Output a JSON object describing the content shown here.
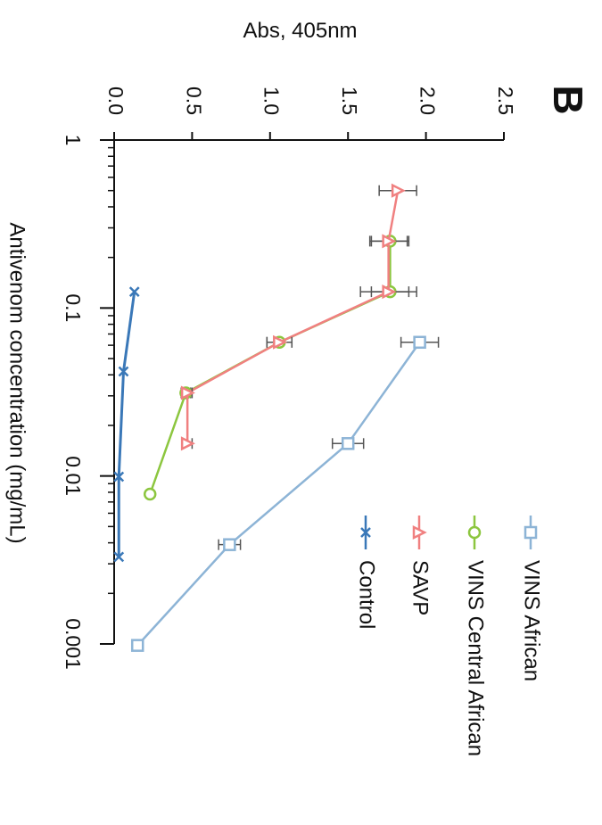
{
  "panel_label": "B",
  "chart_data": {
    "type": "line",
    "orientation": "rotated-90-clockwise",
    "x_scale": "log",
    "xlabel": "Antivenom concentration (mg/mL)",
    "ylabel": "Abs, 405nm",
    "xlim": [
      0.001,
      1
    ],
    "ylim": [
      0.0,
      2.5
    ],
    "x_ticks": [
      {
        "value": 1,
        "label": "1"
      },
      {
        "value": 0.1,
        "label": "0.1"
      },
      {
        "value": 0.01,
        "label": "0.01"
      },
      {
        "value": 0.001,
        "label": "0.001"
      }
    ],
    "y_ticks": [
      {
        "value": 0.0,
        "label": "0.0"
      },
      {
        "value": 0.5,
        "label": "0.5"
      },
      {
        "value": 1.0,
        "label": "1.0"
      },
      {
        "value": 1.5,
        "label": "1.5"
      },
      {
        "value": 2.0,
        "label": "2.0"
      },
      {
        "value": 2.5,
        "label": "2.5"
      }
    ],
    "grid": false,
    "legend_position": "bottom-right",
    "series": [
      {
        "name": "VINS African",
        "color": "#8db4d6",
        "marker": "square",
        "x": [
          0.0625,
          0.0156,
          0.0039,
          0.00098
        ],
        "y": [
          1.96,
          1.5,
          0.74,
          0.15
        ],
        "err": [
          0.12,
          0.1,
          0.07,
          0.03
        ]
      },
      {
        "name": "VINS Central African",
        "color": "#8cc63f",
        "marker": "circle",
        "x": [
          0.5,
          0.25,
          0.125,
          0.0625,
          0.03125,
          0.0078
        ],
        "y": [
          null,
          1.77,
          1.77,
          1.06,
          0.46,
          0.23
        ],
        "err": [
          null,
          0.12,
          0.12,
          0.08,
          0.03,
          0.02
        ]
      },
      {
        "name": "SAVP",
        "color": "#f08080",
        "marker": "triangle",
        "x": [
          0.5,
          0.25,
          0.125,
          0.0625,
          0.03125,
          0.0156
        ],
        "y": [
          1.82,
          1.76,
          1.76,
          1.06,
          0.47,
          0.47
        ],
        "err": [
          0.12,
          0.12,
          0.18,
          0.08,
          0.03,
          0.03
        ]
      },
      {
        "name": "Control",
        "color": "#3a78b8",
        "marker": "x",
        "x": [
          0.125,
          0.0419,
          0.0099,
          0.0033
        ],
        "y": [
          0.13,
          0.06,
          0.03,
          0.03
        ],
        "err": [
          null,
          null,
          null,
          null
        ]
      }
    ]
  }
}
